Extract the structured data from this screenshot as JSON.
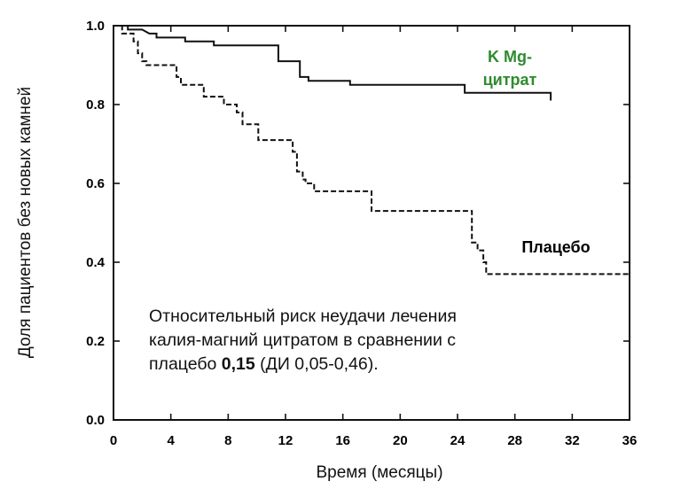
{
  "chart_data": {
    "type": "line",
    "xlabel": "Время (месяцы)",
    "ylabel": "Доля пациентов без новых камней",
    "xlim": [
      0,
      36
    ],
    "ylim": [
      0,
      1
    ],
    "x_ticks": [
      "0",
      "4",
      "8",
      "12",
      "16",
      "20",
      "24",
      "28",
      "32",
      "36"
    ],
    "y_ticks": [
      "0.0",
      "0.2",
      "0.4",
      "0.6",
      "0.8",
      "1.0"
    ],
    "grid": false,
    "series": [
      {
        "name": "K Mg-цитрат",
        "label_lines": [
          "K Mg-",
          "цитрат"
        ],
        "color": "#2e8b2e",
        "line_color": "#111111",
        "style": "solid",
        "points": [
          [
            0,
            1.0
          ],
          [
            1,
            1.0
          ],
          [
            1,
            0.99
          ],
          [
            2,
            0.99
          ],
          [
            2.5,
            0.98
          ],
          [
            3,
            0.98
          ],
          [
            3,
            0.97
          ],
          [
            5,
            0.97
          ],
          [
            5,
            0.96
          ],
          [
            7,
            0.96
          ],
          [
            7,
            0.95
          ],
          [
            11.5,
            0.95
          ],
          [
            11.5,
            0.91
          ],
          [
            13,
            0.91
          ],
          [
            13,
            0.87
          ],
          [
            13.6,
            0.87
          ],
          [
            13.6,
            0.86
          ],
          [
            16.5,
            0.86
          ],
          [
            16.5,
            0.85
          ],
          [
            24.5,
            0.85
          ],
          [
            24.5,
            0.83
          ],
          [
            30.5,
            0.83
          ],
          [
            30.5,
            0.81
          ]
        ]
      },
      {
        "name": "Плацебо",
        "label_lines": [
          "Плацебо"
        ],
        "color": "#000000",
        "line_color": "#111111",
        "style": "dashed",
        "points": [
          [
            0,
            1.0
          ],
          [
            0.6,
            1.0
          ],
          [
            0.6,
            0.98
          ],
          [
            1.4,
            0.98
          ],
          [
            1.4,
            0.96
          ],
          [
            1.7,
            0.96
          ],
          [
            1.7,
            0.93
          ],
          [
            2,
            0.93
          ],
          [
            2,
            0.91
          ],
          [
            2.3,
            0.91
          ],
          [
            2.3,
            0.9
          ],
          [
            4.4,
            0.9
          ],
          [
            4.4,
            0.87
          ],
          [
            4.7,
            0.87
          ],
          [
            4.7,
            0.85
          ],
          [
            6.3,
            0.85
          ],
          [
            6.3,
            0.82
          ],
          [
            7.7,
            0.82
          ],
          [
            7.7,
            0.8
          ],
          [
            8.6,
            0.8
          ],
          [
            8.6,
            0.78
          ],
          [
            9,
            0.78
          ],
          [
            9,
            0.75
          ],
          [
            10.1,
            0.75
          ],
          [
            10.1,
            0.71
          ],
          [
            12.5,
            0.71
          ],
          [
            12.5,
            0.68
          ],
          [
            12.8,
            0.68
          ],
          [
            12.8,
            0.63
          ],
          [
            13.2,
            0.63
          ],
          [
            13.2,
            0.61
          ],
          [
            13.4,
            0.61
          ],
          [
            13.4,
            0.6
          ],
          [
            14,
            0.6
          ],
          [
            14,
            0.58
          ],
          [
            18,
            0.58
          ],
          [
            18,
            0.53
          ],
          [
            25,
            0.53
          ],
          [
            25,
            0.45
          ],
          [
            25.4,
            0.45
          ],
          [
            25.4,
            0.43
          ],
          [
            25.8,
            0.43
          ],
          [
            25.8,
            0.4
          ],
          [
            26,
            0.4
          ],
          [
            26,
            0.37
          ],
          [
            36,
            0.37
          ]
        ]
      }
    ],
    "annotation": {
      "line1": "Относительный риск неудачи лечения",
      "line2": "калия-магний цитратом в сравнении с",
      "line3_prefix": "плацебо ",
      "line3_bold": "0,15",
      "line3_suffix": " (ДИ 0,05-0,46)."
    }
  }
}
